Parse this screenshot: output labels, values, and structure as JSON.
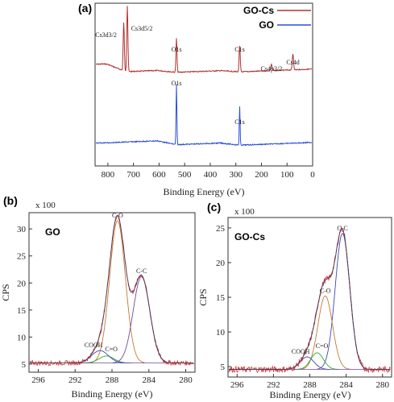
{
  "chart_data": [
    {
      "id": "a",
      "type": "line",
      "panel_label": "(a)",
      "xlabel": "Binding Energy (eV)",
      "ylabel": "",
      "xlim": [
        850,
        0
      ],
      "x_reversed": true,
      "x_ticks": [
        800,
        700,
        600,
        500,
        400,
        300,
        200,
        100,
        0
      ],
      "grid": false,
      "legend_position": "top-right",
      "series": [
        {
          "name": "GO-Cs",
          "color": "#b03030",
          "peaks": [
            {
              "label": "Cs3d3/2",
              "x": 738
            },
            {
              "label": "Cs3d5/2",
              "x": 724
            },
            {
              "label": "O1s",
              "x": 532
            },
            {
              "label": "C1s",
              "x": 285
            },
            {
              "label": "Cs4p3/2",
              "x": 161
            },
            {
              "label": "Cs4d",
              "x": 77
            }
          ]
        },
        {
          "name": "GO",
          "color": "#2b4fd8",
          "peaks": [
            {
              "label": "O1s",
              "x": 532
            },
            {
              "label": "C1s",
              "x": 285
            }
          ]
        }
      ]
    },
    {
      "id": "b",
      "type": "line",
      "panel_label": "(b)",
      "sample": "GO",
      "multiplier": "x 100",
      "xlabel": "Binding Energy (eV)",
      "ylabel": "CPS",
      "xlim": [
        297,
        279
      ],
      "x_reversed": true,
      "ylim": [
        3.5,
        33
      ],
      "x_ticks": [
        296,
        292,
        288,
        284,
        280
      ],
      "y_ticks": [
        5,
        10,
        15,
        20,
        25,
        30
      ],
      "baseline": 5.2,
      "components": [
        {
          "label": "C-O",
          "center": 287.4,
          "height": 31.5,
          "width": 0.85,
          "color": "#c87830"
        },
        {
          "label": "C-C",
          "center": 284.8,
          "height": 21.2,
          "width": 0.9,
          "color": "#6f4a9e"
        },
        {
          "label": "C=O",
          "center": 288.6,
          "height": 6.5,
          "width": 0.8,
          "color": "#2fa82f"
        },
        {
          "label": "COOH",
          "center": 289.3,
          "height": 7.5,
          "width": 0.9,
          "color": "#3a48b8"
        }
      ]
    },
    {
      "id": "c",
      "type": "line",
      "panel_label": "(c)",
      "sample": "GO-Cs",
      "multiplier": "x 100",
      "xlabel": "Binding Energy (eV)",
      "ylabel": "CPS",
      "xlim": [
        297,
        279
      ],
      "x_reversed": true,
      "ylim": [
        3.5,
        26.5
      ],
      "x_ticks": [
        296,
        292,
        288,
        284,
        280
      ],
      "y_ticks": [
        5,
        10,
        15,
        20,
        25
      ],
      "baseline": 4.6,
      "components": [
        {
          "label": "C-C",
          "center": 284.4,
          "height": 24.2,
          "width": 0.8,
          "color": "#3a48b8"
        },
        {
          "label": "C-O",
          "center": 286.3,
          "height": 15.2,
          "width": 0.8,
          "color": "#c87830"
        },
        {
          "label": "C=O",
          "center": 287.2,
          "height": 7.0,
          "width": 0.7,
          "color": "#2fa82f"
        },
        {
          "label": "COOH",
          "center": 288.3,
          "height": 6.4,
          "width": 0.75,
          "color": "#3a48b8"
        }
      ]
    }
  ]
}
